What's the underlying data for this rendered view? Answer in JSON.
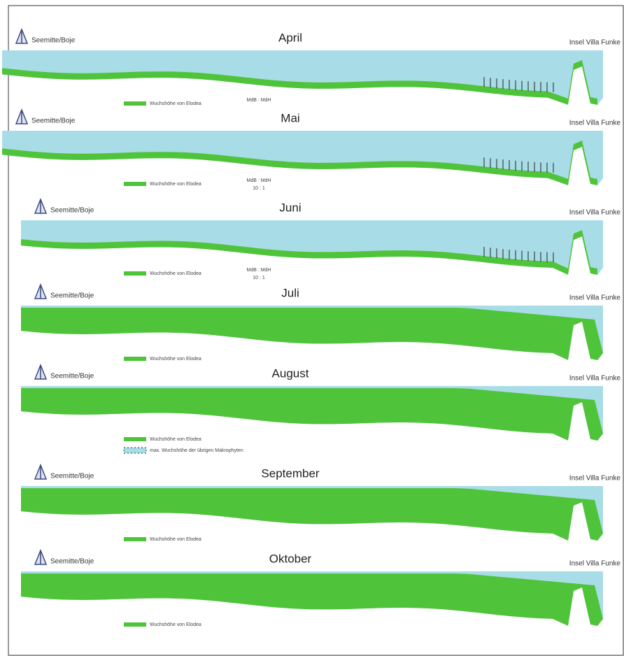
{
  "panels": [
    {
      "month": "April",
      "left_label": "Seemitte/Boje",
      "right_label": "Insel Villa Funke",
      "legend": [
        "Wuchshöhe von Elodea"
      ],
      "scale": [
        "MdB : MdH"
      ]
    },
    {
      "month": "Mai",
      "left_label": "Seemitte/Boje",
      "right_label": "Insel Villa Funke",
      "legend": [
        "Wuchshöhe von Elodea"
      ],
      "scale": [
        "MdB : MdH",
        "10 : 1"
      ]
    },
    {
      "month": "Juni",
      "left_label": "Seemitte/Boje",
      "right_label": "Insel Villa Funke",
      "legend": [
        "Wuchshöhe von Elodea"
      ],
      "scale": [
        "MdB : MdH",
        "10 : 1"
      ]
    },
    {
      "month": "Juli",
      "left_label": "Seemitte/Boje",
      "right_label": "Insel Villa Funke",
      "legend": [
        "Wuchshöhe von Elodea"
      ]
    },
    {
      "month": "August",
      "left_label": "Seemitte/Boje",
      "right_label": "Insel Villa Funke",
      "legend": [
        "Wuchshöhe von Elodea",
        "max. Wuchshöhe der übrigen Makrophyten"
      ]
    },
    {
      "month": "September",
      "left_label": "Seemitte/Boje",
      "right_label": "Insel Villa Funke",
      "legend": [
        "Wuchshöhe von Elodea"
      ]
    },
    {
      "month": "Oktober",
      "left_label": "Seemitte/Boje",
      "right_label": "Insel Villa Funke",
      "legend": [
        "Wuchshöhe von Elodea"
      ]
    }
  ]
}
